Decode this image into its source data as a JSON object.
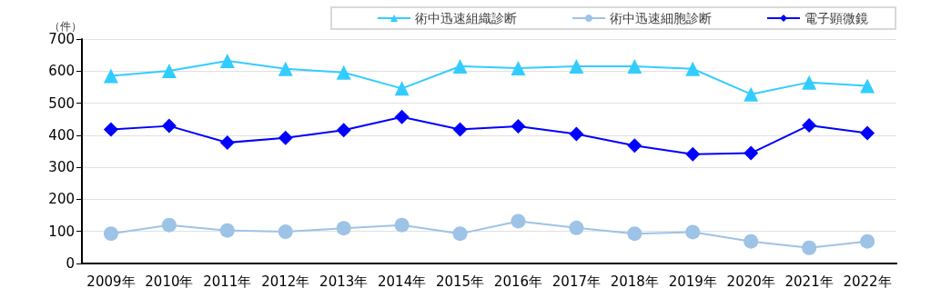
{
  "chart_data": {
    "type": "line",
    "ylabel": "（件）",
    "categories": [
      "2009年",
      "2010年",
      "2011年",
      "2012年",
      "2013年",
      "2014年",
      "2015年",
      "2016年",
      "2017年",
      "2018年",
      "2019年",
      "2020年",
      "2021年",
      "2022年"
    ],
    "series": [
      {
        "name": "術中迅速組織診断",
        "color": "#33ccff",
        "marker": "triangle",
        "values": [
          585,
          601,
          632,
          607,
          596,
          546,
          615,
          609,
          615,
          615,
          607,
          528,
          565,
          554
        ]
      },
      {
        "name": "術中迅速細胞診断",
        "color": "#9dc3e6",
        "marker": "circle",
        "values": [
          93,
          120,
          103,
          99,
          110,
          120,
          93,
          132,
          111,
          93,
          98,
          69,
          49,
          69
        ]
      },
      {
        "name": "電子顕微鏡",
        "color": "#0000ff",
        "marker": "diamond",
        "values": [
          418,
          429,
          377,
          392,
          416,
          457,
          418,
          428,
          404,
          368,
          341,
          344,
          431,
          407
        ]
      }
    ],
    "ylim": [
      0,
      700
    ],
    "yticks": [
      0,
      100,
      200,
      300,
      400,
      500,
      600,
      700
    ],
    "grid": "y",
    "legend": "top right",
    "line_style": "solid"
  }
}
